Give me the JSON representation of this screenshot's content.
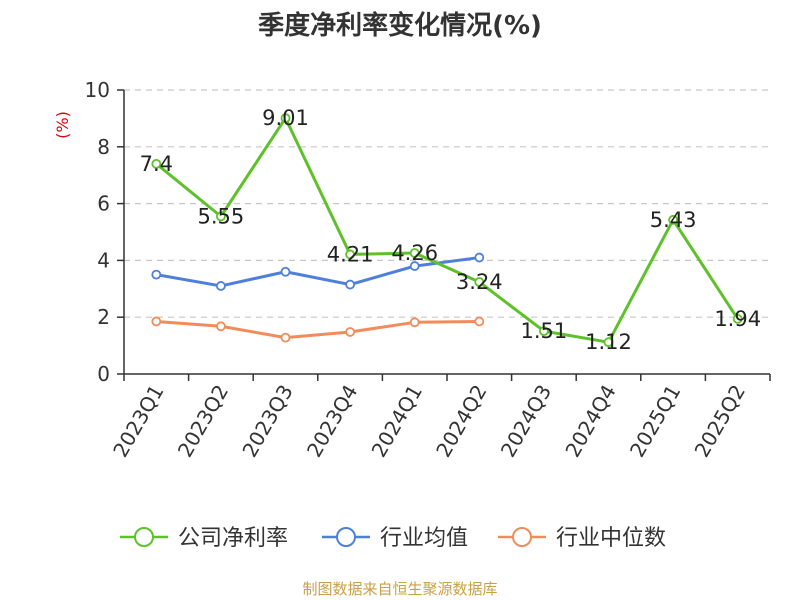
{
  "chart_data": {
    "type": "line",
    "title": "季度净利率变化情况(%)",
    "ylabel": "(%)",
    "ylim": [
      0,
      10
    ],
    "yticks": [
      0,
      2,
      4,
      6,
      8,
      10
    ],
    "grid": "horizontal dashed",
    "legend_position": "bottom",
    "categories": [
      "2023Q1",
      "2023Q2",
      "2023Q3",
      "2023Q4",
      "2024Q1",
      "2024Q2",
      "2024Q3",
      "2024Q4",
      "2025Q1",
      "2025Q2"
    ],
    "series": [
      {
        "name": "公司净利率",
        "color": "#5ec12a",
        "values": [
          7.4,
          5.55,
          9.01,
          4.21,
          4.26,
          3.24,
          1.51,
          1.12,
          5.43,
          1.94
        ],
        "labels": [
          "7.4",
          "5.55",
          "9.01",
          "4.21",
          "4.26",
          "3.24",
          "1.51",
          "1.12",
          "5.43",
          "1.94"
        ],
        "show_labels": true
      },
      {
        "name": "行业均值",
        "color": "#4f7fdd",
        "values": [
          3.5,
          3.1,
          3.6,
          3.15,
          3.8,
          4.1,
          null,
          null,
          null,
          null
        ],
        "show_labels": false
      },
      {
        "name": "行业中位数",
        "color": "#f28b5b",
        "values": [
          1.85,
          1.68,
          1.28,
          1.48,
          1.82,
          1.85,
          null,
          null,
          null,
          null
        ],
        "show_labels": false
      }
    ]
  },
  "source_note": "制图数据来自恒生聚源数据库"
}
